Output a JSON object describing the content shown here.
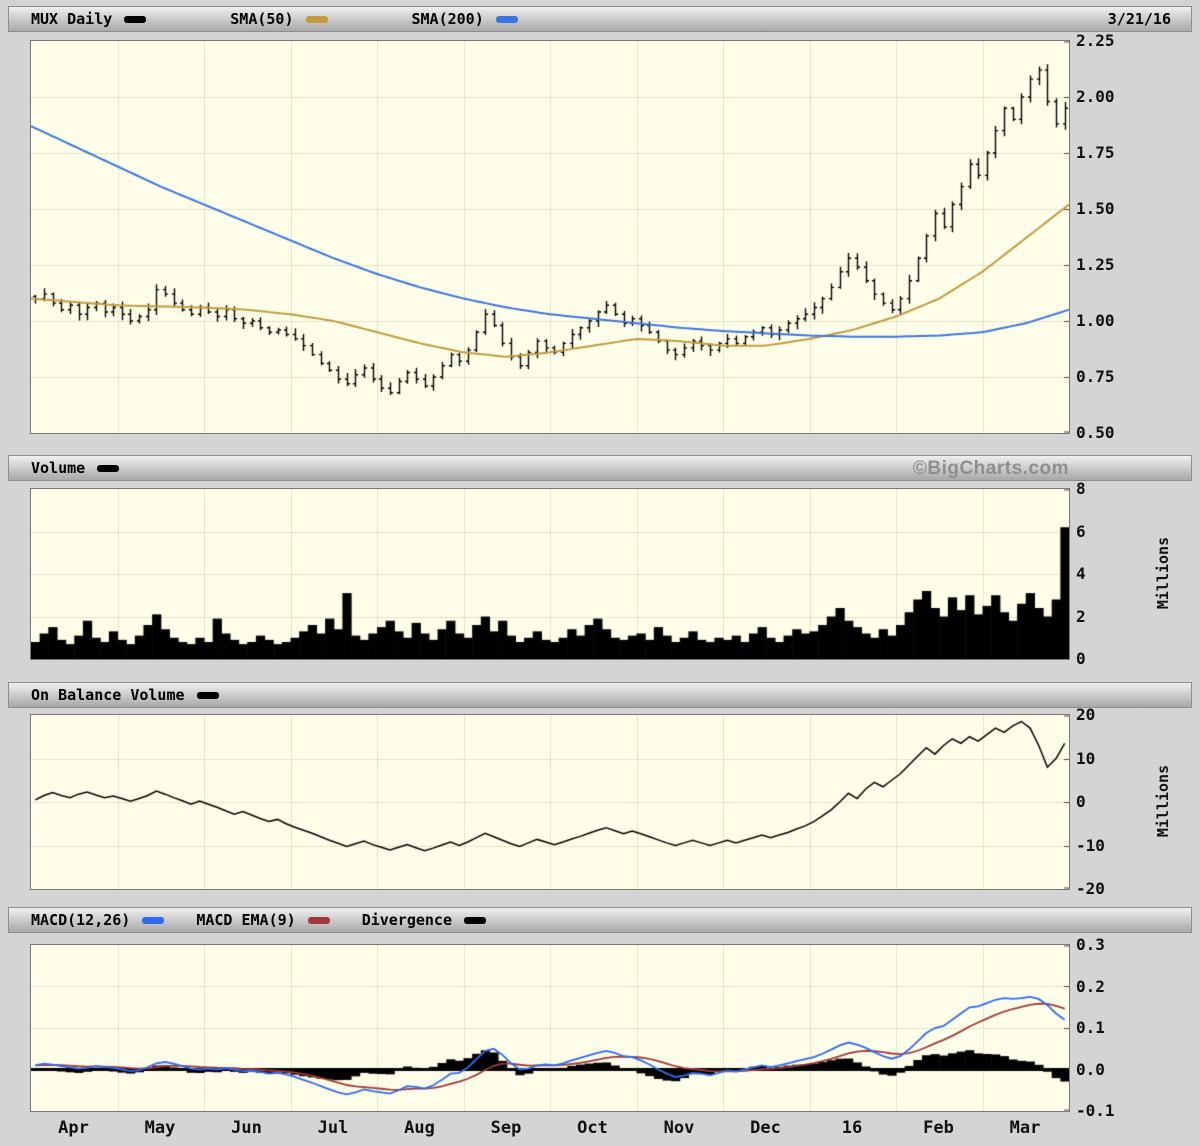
{
  "header": {
    "symbol": "MUX Daily",
    "sma50_label": "SMA(50)",
    "sma200_label": "SMA(200)",
    "date": "3/21/16"
  },
  "volume_header": {
    "label": "Volume",
    "watermark": "©BigCharts.com"
  },
  "obv_header": {
    "label": "On Balance Volume"
  },
  "macd_header": {
    "macd_label": "MACD(12,26)",
    "ema_label": "MACD EMA(9)",
    "divergence_label": "Divergence"
  },
  "colors": {
    "price": "#000000",
    "sma50": "#C49A3F",
    "sma200": "#3B76E0",
    "macd": "#2F6BF0",
    "macd_ema": "#9E3A3A",
    "divergence": "#000000",
    "plot_bg": "#FFFFE9",
    "grid": "#E2E2C9",
    "page_bg": "#D4D4D4",
    "tick": "#444444"
  },
  "x_axis": {
    "labels": [
      "Apr",
      "May",
      "Jun",
      "Jul",
      "Aug",
      "Sep",
      "Oct",
      "Nov",
      "Dec",
      "16",
      "Feb",
      "Mar"
    ]
  },
  "chart_data": [
    {
      "type": "ohlc",
      "title": "MUX Daily",
      "ylim": [
        0.5,
        2.25
      ],
      "yticks": [
        "2.25",
        "2.00",
        "1.75",
        "1.50",
        "1.25",
        "1.00",
        "0.75",
        "0.50"
      ],
      "close": [
        1.1,
        1.12,
        1.08,
        1.05,
        1.07,
        1.03,
        1.06,
        1.08,
        1.04,
        1.06,
        1.03,
        1.0,
        1.02,
        1.05,
        1.14,
        1.12,
        1.08,
        1.05,
        1.03,
        1.06,
        1.04,
        1.02,
        1.05,
        1.01,
        0.99,
        1.0,
        0.97,
        0.95,
        0.96,
        0.94,
        0.92,
        0.89,
        0.85,
        0.81,
        0.78,
        0.74,
        0.72,
        0.76,
        0.79,
        0.74,
        0.7,
        0.68,
        0.73,
        0.77,
        0.74,
        0.71,
        0.75,
        0.8,
        0.85,
        0.82,
        0.87,
        0.95,
        1.03,
        0.98,
        0.9,
        0.84,
        0.8,
        0.86,
        0.91,
        0.88,
        0.86,
        0.9,
        0.94,
        0.97,
        1.0,
        1.04,
        1.07,
        1.03,
        0.99,
        1.01,
        0.98,
        0.95,
        0.91,
        0.87,
        0.85,
        0.88,
        0.91,
        0.89,
        0.87,
        0.9,
        0.92,
        0.9,
        0.93,
        0.95,
        0.97,
        0.94,
        0.96,
        0.99,
        1.01,
        1.03,
        1.06,
        1.1,
        1.15,
        1.22,
        1.28,
        1.24,
        1.18,
        1.12,
        1.08,
        1.05,
        1.1,
        1.18,
        1.28,
        1.38,
        1.48,
        1.42,
        1.52,
        1.6,
        1.7,
        1.65,
        1.75,
        1.85,
        1.95,
        1.9,
        2.0,
        2.08,
        2.12,
        1.98,
        1.88,
        1.95
      ],
      "series": [
        {
          "name": "SMA(50)",
          "color_key": "sma50",
          "x": [
            0,
            0.5,
            1,
            1.5,
            2,
            2.5,
            3,
            3.5,
            4,
            4.5,
            5,
            5.5,
            6,
            6.5,
            7,
            7.5,
            8,
            8.5,
            9,
            9.5,
            10,
            10.5,
            11,
            11.5,
            12
          ],
          "y": [
            1.1,
            1.085,
            1.07,
            1.065,
            1.06,
            1.05,
            1.03,
            1.0,
            0.95,
            0.9,
            0.86,
            0.84,
            0.86,
            0.89,
            0.92,
            0.91,
            0.89,
            0.89,
            0.92,
            0.96,
            1.02,
            1.1,
            1.22,
            1.37,
            1.52
          ]
        },
        {
          "name": "SMA(200)",
          "color_key": "sma200",
          "x": [
            0,
            0.5,
            1,
            1.5,
            2,
            2.5,
            3,
            3.5,
            4,
            4.5,
            5,
            5.5,
            6,
            6.5,
            7,
            7.5,
            8,
            8.5,
            9,
            9.5,
            10,
            10.5,
            11,
            11.5,
            12
          ],
          "y": [
            1.87,
            1.78,
            1.69,
            1.6,
            1.52,
            1.44,
            1.36,
            1.28,
            1.21,
            1.15,
            1.1,
            1.06,
            1.03,
            1.01,
            0.99,
            0.97,
            0.955,
            0.945,
            0.935,
            0.93,
            0.93,
            0.935,
            0.95,
            0.99,
            1.05
          ]
        }
      ]
    },
    {
      "type": "bar",
      "title": "Volume",
      "unit": "Millions",
      "ylim": [
        0,
        8
      ],
      "yticks": [
        "8",
        "6",
        "4",
        "2",
        "0"
      ],
      "values": [
        0.8,
        1.2,
        1.5,
        0.9,
        0.7,
        1.1,
        1.8,
        1.0,
        0.8,
        1.3,
        0.9,
        0.7,
        1.1,
        1.6,
        2.1,
        1.4,
        1.0,
        0.8,
        0.7,
        1.0,
        0.8,
        1.9,
        1.2,
        0.9,
        0.7,
        0.8,
        1.1,
        0.9,
        0.7,
        0.8,
        1.0,
        1.3,
        1.6,
        1.2,
        1.9,
        1.4,
        3.1,
        1.1,
        0.9,
        1.2,
        1.5,
        1.8,
        1.3,
        1.0,
        1.7,
        1.2,
        0.9,
        1.4,
        1.8,
        1.2,
        1.0,
        1.6,
        2.0,
        1.3,
        1.8,
        1.1,
        0.8,
        1.0,
        1.3,
        0.9,
        0.8,
        1.0,
        1.4,
        1.1,
        1.6,
        1.9,
        1.4,
        1.0,
        0.9,
        1.1,
        1.2,
        0.9,
        1.5,
        1.1,
        0.8,
        1.0,
        1.3,
        0.9,
        0.8,
        1.0,
        0.9,
        1.1,
        0.8,
        1.2,
        1.5,
        1.0,
        0.8,
        1.1,
        1.4,
        1.2,
        1.3,
        1.6,
        2.0,
        2.4,
        1.8,
        1.5,
        1.2,
        1.0,
        1.4,
        1.1,
        1.6,
        2.2,
        2.8,
        3.2,
        2.4,
        2.0,
        2.9,
        2.3,
        3.0,
        2.1,
        2.5,
        3.0,
        2.2,
        1.8,
        2.6,
        3.1,
        2.4,
        2.0,
        2.8,
        6.2
      ]
    },
    {
      "type": "line",
      "title": "On Balance Volume",
      "unit": "Millions",
      "ylim": [
        -20,
        20
      ],
      "yticks": [
        "20",
        "10",
        "0",
        "-10",
        "-20"
      ],
      "values": [
        0.5,
        1.5,
        2.2,
        1.5,
        1.0,
        1.8,
        2.3,
        1.6,
        1.0,
        1.4,
        0.8,
        0.2,
        0.8,
        1.5,
        2.5,
        1.8,
        1.0,
        0.3,
        -0.5,
        0.2,
        -0.5,
        -1.2,
        -2.0,
        -2.8,
        -2.2,
        -3.0,
        -3.8,
        -4.5,
        -4.0,
        -5.0,
        -5.8,
        -6.5,
        -7.2,
        -8.0,
        -8.8,
        -9.5,
        -10.2,
        -9.6,
        -9.0,
        -9.8,
        -10.4,
        -11.0,
        -10.4,
        -9.8,
        -10.5,
        -11.2,
        -10.6,
        -9.9,
        -9.2,
        -10.0,
        -9.2,
        -8.2,
        -7.2,
        -8.0,
        -8.8,
        -9.6,
        -10.2,
        -9.4,
        -8.6,
        -9.2,
        -9.8,
        -9.2,
        -8.5,
        -7.9,
        -7.2,
        -6.5,
        -5.9,
        -6.6,
        -7.3,
        -6.7,
        -7.3,
        -8.0,
        -8.7,
        -9.4,
        -10.0,
        -9.4,
        -8.8,
        -9.4,
        -10.0,
        -9.4,
        -8.8,
        -9.4,
        -8.8,
        -8.2,
        -7.6,
        -8.2,
        -7.6,
        -7.0,
        -6.2,
        -5.5,
        -4.5,
        -3.2,
        -1.8,
        0.0,
        2.0,
        0.8,
        3.0,
        4.5,
        3.5,
        5.0,
        6.5,
        8.5,
        10.5,
        12.5,
        11.0,
        13.0,
        14.5,
        13.5,
        15.0,
        14.0,
        15.5,
        17.0,
        16.0,
        17.5,
        18.5,
        17.0,
        13.0,
        8.0,
        10.0,
        13.5
      ]
    },
    {
      "type": "macd",
      "title": "MACD(12,26)",
      "ylim": [
        -0.1,
        0.3
      ],
      "yticks": [
        "0.3",
        "0.2",
        "0.1",
        "0.0",
        "-0.1"
      ],
      "macd": [
        0.01,
        0.014,
        0.012,
        0.008,
        0.005,
        0.002,
        0.004,
        0.008,
        0.006,
        0.004,
        0.0,
        -0.004,
        -0.002,
        0.006,
        0.015,
        0.018,
        0.014,
        0.008,
        0.002,
        0.0,
        0.002,
        0.0,
        0.003,
        0.0,
        -0.004,
        -0.003,
        -0.006,
        -0.01,
        -0.008,
        -0.012,
        -0.018,
        -0.025,
        -0.032,
        -0.04,
        -0.048,
        -0.055,
        -0.06,
        -0.055,
        -0.048,
        -0.052,
        -0.055,
        -0.058,
        -0.05,
        -0.04,
        -0.042,
        -0.046,
        -0.038,
        -0.025,
        -0.01,
        -0.008,
        0.005,
        0.025,
        0.045,
        0.05,
        0.035,
        0.015,
        0.0,
        0.002,
        0.01,
        0.012,
        0.01,
        0.015,
        0.022,
        0.028,
        0.034,
        0.04,
        0.045,
        0.04,
        0.032,
        0.03,
        0.022,
        0.012,
        0.0,
        -0.01,
        -0.018,
        -0.015,
        -0.008,
        -0.01,
        -0.014,
        -0.008,
        -0.002,
        -0.005,
        0.0,
        0.005,
        0.01,
        0.006,
        0.01,
        0.015,
        0.02,
        0.025,
        0.03,
        0.038,
        0.048,
        0.058,
        0.065,
        0.06,
        0.052,
        0.042,
        0.032,
        0.026,
        0.032,
        0.048,
        0.068,
        0.088,
        0.1,
        0.105,
        0.12,
        0.135,
        0.15,
        0.152,
        0.16,
        0.168,
        0.172,
        0.17,
        0.172,
        0.175,
        0.17,
        0.155,
        0.135,
        0.12
      ],
      "signal_period": 9
    }
  ]
}
